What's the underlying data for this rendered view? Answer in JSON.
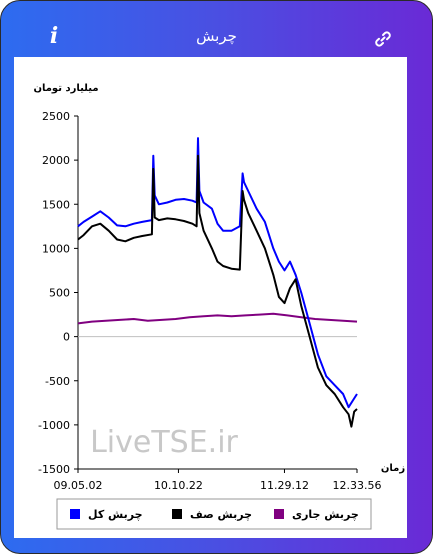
{
  "header": {
    "title": "چربش",
    "info_icon": "info-icon",
    "link_icon": "link-icon",
    "info_glyph": "i"
  },
  "colors": {
    "gradient_left": "#2d6cf0",
    "gradient_right": "#6a2ad6",
    "total": "#0000ff",
    "queue": "#000000",
    "current": "#800080"
  },
  "watermark": "LiveTSE.ir",
  "chart_data": {
    "type": "line",
    "ylabel": "میلیارد تومان",
    "xlabel": "زمان",
    "ylim": [
      -1500,
      2500
    ],
    "yticks": [
      2500,
      2000,
      1500,
      1000,
      500,
      0,
      -500,
      -1000,
      -1500
    ],
    "xticks": [
      "09.05.02",
      "10.10.22",
      "11.29.12",
      "12.33.56"
    ],
    "grid": false,
    "zero_line": true,
    "legend_position": "bottom",
    "series": [
      {
        "name": "چربش کل",
        "color": "#0000ff",
        "x": [
          0,
          0.02,
          0.05,
          0.08,
          0.11,
          0.14,
          0.17,
          0.2,
          0.23,
          0.265,
          0.27,
          0.275,
          0.29,
          0.32,
          0.35,
          0.38,
          0.41,
          0.425,
          0.43,
          0.435,
          0.45,
          0.48,
          0.5,
          0.52,
          0.55,
          0.58,
          0.59,
          0.595,
          0.61,
          0.64,
          0.67,
          0.7,
          0.72,
          0.74,
          0.76,
          0.78,
          0.8,
          0.83,
          0.86,
          0.89,
          0.92,
          0.95,
          0.97,
          0.99,
          1.0
        ],
        "y": [
          1250,
          1300,
          1360,
          1420,
          1350,
          1260,
          1250,
          1280,
          1300,
          1320,
          2050,
          1600,
          1500,
          1520,
          1550,
          1560,
          1540,
          1520,
          2250,
          1650,
          1520,
          1450,
          1280,
          1200,
          1200,
          1250,
          1850,
          1750,
          1650,
          1450,
          1300,
          1000,
          850,
          750,
          850,
          700,
          500,
          150,
          -200,
          -450,
          -550,
          -650,
          -800,
          -700,
          -650
        ]
      },
      {
        "name": "چربش صف",
        "color": "#000000",
        "x": [
          0,
          0.02,
          0.05,
          0.08,
          0.11,
          0.14,
          0.17,
          0.2,
          0.23,
          0.265,
          0.27,
          0.275,
          0.29,
          0.32,
          0.35,
          0.38,
          0.41,
          0.425,
          0.43,
          0.435,
          0.45,
          0.48,
          0.5,
          0.52,
          0.55,
          0.58,
          0.59,
          0.595,
          0.61,
          0.64,
          0.67,
          0.7,
          0.72,
          0.74,
          0.76,
          0.78,
          0.8,
          0.83,
          0.86,
          0.89,
          0.92,
          0.95,
          0.97,
          0.98,
          0.99,
          1.0
        ],
        "y": [
          1100,
          1150,
          1250,
          1280,
          1200,
          1100,
          1080,
          1120,
          1140,
          1160,
          1900,
          1350,
          1320,
          1340,
          1330,
          1310,
          1280,
          1250,
          2050,
          1400,
          1200,
          1000,
          850,
          800,
          770,
          760,
          1650,
          1550,
          1400,
          1200,
          1000,
          700,
          450,
          380,
          550,
          650,
          350,
          0,
          -350,
          -550,
          -650,
          -800,
          -880,
          -1020,
          -850,
          -820
        ]
      },
      {
        "name": "چربش جاری",
        "color": "#800080",
        "x": [
          0,
          0.05,
          0.1,
          0.15,
          0.2,
          0.25,
          0.3,
          0.35,
          0.4,
          0.45,
          0.5,
          0.55,
          0.6,
          0.65,
          0.7,
          0.75,
          0.8,
          0.85,
          0.9,
          0.95,
          1.0
        ],
        "y": [
          150,
          170,
          180,
          190,
          200,
          180,
          190,
          200,
          220,
          230,
          240,
          230,
          240,
          250,
          260,
          240,
          220,
          200,
          190,
          180,
          170
        ]
      }
    ]
  }
}
